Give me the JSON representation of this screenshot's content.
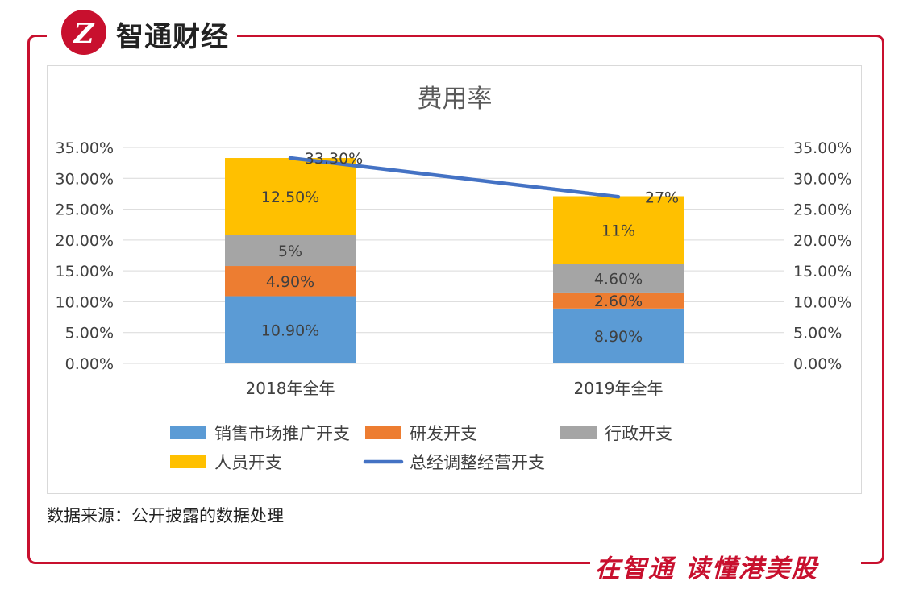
{
  "brand": {
    "name": "智通财经",
    "logo_letter": "Z"
  },
  "source_note": "数据来源：公开披露的数据处理",
  "slogan": "在智通 读懂港美股",
  "colors": {
    "accent": "#c8102e"
  },
  "chart_data": {
    "type": "bar",
    "stacked": true,
    "title": "费用率",
    "categories": [
      "2018年全年",
      "2019年全年"
    ],
    "series": [
      {
        "name": "销售市场推广开支",
        "color": "#5b9bd5",
        "values": [
          10.9,
          8.9
        ],
        "labels": [
          "10.90%",
          "8.90%"
        ]
      },
      {
        "name": "研发开支",
        "color": "#ed7d31",
        "values": [
          4.9,
          2.6
        ],
        "labels": [
          "4.90%",
          "2.60%"
        ]
      },
      {
        "name": "行政开支",
        "color": "#a5a5a5",
        "values": [
          5,
          4.6
        ],
        "labels": [
          "5%",
          "4.60%"
        ]
      },
      {
        "name": "人员开支",
        "color": "#ffc000",
        "values": [
          12.5,
          11
        ],
        "labels": [
          "12.50%",
          "11%"
        ]
      }
    ],
    "line": {
      "name": "总经调整经营开支",
      "color": "#4472c4",
      "values": [
        33.3,
        27
      ],
      "labels": [
        "33.30%",
        "27%"
      ],
      "axis": "secondary"
    },
    "ylim": [
      0,
      35
    ],
    "yticks": [
      "0.00%",
      "5.00%",
      "10.00%",
      "15.00%",
      "20.00%",
      "25.00%",
      "30.00%",
      "35.00%"
    ],
    "y2ticks": [
      "0.00%",
      "5.00%",
      "10.00%",
      "15.00%",
      "20.00%",
      "25.00%",
      "30.00%",
      "35.00%"
    ],
    "legend_position": "bottom",
    "grid": true
  }
}
